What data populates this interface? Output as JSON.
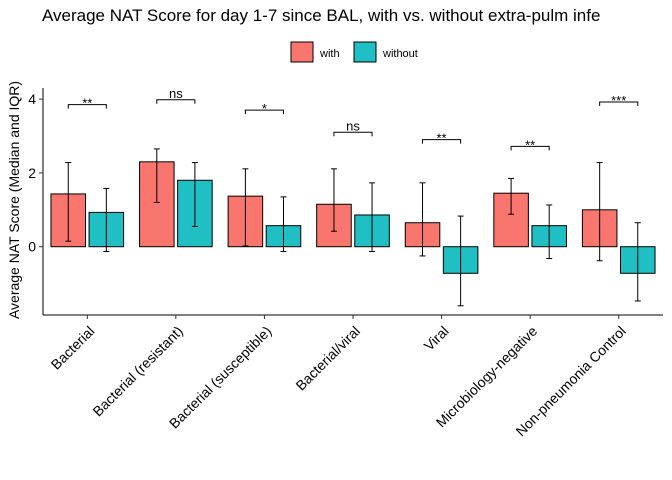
{
  "chart_data": {
    "type": "bar",
    "title": "Average NAT Score for day 1-7 since BAL, with vs. without extra-pulm infe",
    "xlabel": "",
    "ylabel": "Average NAT Score (Median and IQR)",
    "ylim": [
      -1.85,
      4.3
    ],
    "yticks": [
      0,
      2,
      4
    ],
    "grid": false,
    "legend_position": "top",
    "categories": [
      "Bacterial",
      "Bacterial (resistant)",
      "Bacterial (susceptible)",
      "Bacterial/viral",
      "Viral",
      "Microbiology-negative",
      "Non-pneumonia Control"
    ],
    "series": [
      {
        "name": "with",
        "color": "#F8766D",
        "values": [
          1.43,
          2.3,
          1.37,
          1.15,
          0.65,
          1.45,
          1.0
        ],
        "lower": [
          0.15,
          1.2,
          0.02,
          0.42,
          -0.25,
          0.88,
          -0.38
        ],
        "upper": [
          2.28,
          2.65,
          2.11,
          2.11,
          1.73,
          1.85,
          2.28
        ]
      },
      {
        "name": "without",
        "color": "#1FBFC4",
        "values": [
          0.93,
          1.8,
          0.57,
          0.86,
          -0.72,
          0.57,
          -0.72
        ],
        "lower": [
          -0.13,
          0.55,
          -0.13,
          -0.13,
          -1.6,
          -0.32,
          -1.47
        ],
        "upper": [
          1.58,
          2.28,
          1.35,
          1.73,
          0.83,
          1.13,
          0.65
        ]
      }
    ],
    "significance": [
      {
        "category": "Bacterial",
        "label": "**",
        "y": 3.85
      },
      {
        "category": "Bacterial (resistant)",
        "label": "ns",
        "y": 3.98
      },
      {
        "category": "Bacterial (susceptible)",
        "label": "*",
        "y": 3.7
      },
      {
        "category": "Bacterial/viral",
        "label": "ns",
        "y": 3.1
      },
      {
        "category": "Viral",
        "label": "**",
        "y": 2.9
      },
      {
        "category": "Microbiology-negative",
        "label": "**",
        "y": 2.72
      },
      {
        "category": "Non-pneumonia Control",
        "label": "***",
        "y": 3.92
      }
    ]
  }
}
